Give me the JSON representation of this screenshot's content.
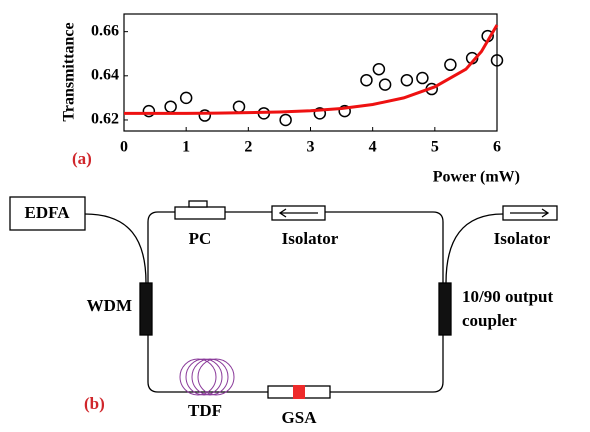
{
  "chart_data": {
    "type": "scatter",
    "xlabel": "Power (mW)",
    "ylabel": "Transmittance",
    "annotation": "(a)",
    "xlim": [
      0,
      6
    ],
    "xticks": [
      0,
      1,
      2,
      3,
      4,
      5,
      6
    ],
    "ylim": [
      0.615,
      0.668
    ],
    "yticks": [
      0.62,
      0.64,
      0.66
    ],
    "series": [
      {
        "kind": "markers",
        "color": "#000000",
        "x": [
          0.4,
          0.75,
          1.0,
          1.3,
          1.85,
          2.25,
          2.6,
          3.15,
          3.55,
          3.9,
          4.1,
          4.2,
          4.55,
          4.8,
          4.95,
          5.25,
          5.6,
          5.85,
          6.0
        ],
        "values": [
          0.624,
          0.626,
          0.63,
          0.622,
          0.626,
          0.623,
          0.62,
          0.623,
          0.624,
          0.638,
          0.643,
          0.636,
          0.638,
          0.639,
          0.634,
          0.645,
          0.648,
          0.658,
          0.647
        ]
      },
      {
        "kind": "fit",
        "color": "#ee1111",
        "x": [
          0,
          0.5,
          1,
          1.5,
          2,
          2.5,
          3,
          3.5,
          4,
          4.5,
          5,
          5.5,
          5.75,
          6
        ],
        "values": [
          0.623,
          0.623,
          0.623,
          0.6231,
          0.6233,
          0.6236,
          0.6242,
          0.6252,
          0.627,
          0.63,
          0.635,
          0.643,
          0.651,
          0.663
        ]
      }
    ]
  },
  "diagram": {
    "label": "(b)",
    "edfa": "EDFA",
    "pc": "PC",
    "isolator_loop": "Isolator",
    "isolator_out": "Isolator",
    "wdm": "WDM",
    "coupler_line1": "10/90 output",
    "coupler_line2": "coupler",
    "tdf": "TDF",
    "gsa": "GSA"
  }
}
